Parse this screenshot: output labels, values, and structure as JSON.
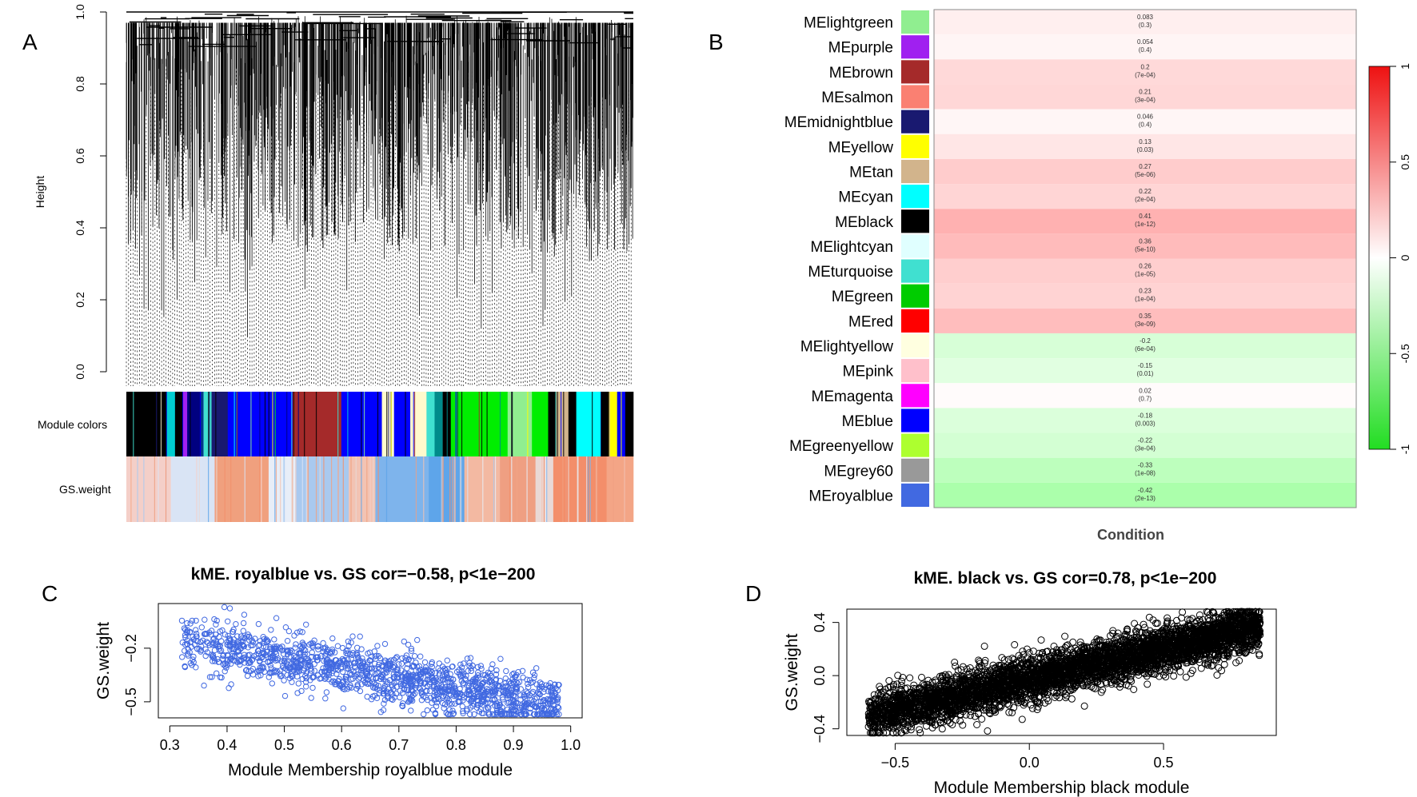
{
  "chart_data": [
    {
      "panel": "A",
      "type": "dendrogram",
      "ylabel": "Height",
      "ylim": [
        0,
        1
      ],
      "yticks": [
        "0.0",
        "0.2",
        "0.4",
        "0.6",
        "0.8",
        "1.0"
      ],
      "track_labels": [
        "Module colors",
        "GS.weight"
      ],
      "module_blocks": [
        {
          "color": "#000000",
          "width": 5
        },
        {
          "color": "#00ced1",
          "width": 1
        },
        {
          "color": "#000000",
          "width": 1
        },
        {
          "color": "#a020f0",
          "width": 0.5
        },
        {
          "color": "#000080",
          "width": 2
        },
        {
          "color": "#40e0d0",
          "width": 1
        },
        {
          "color": "#191970",
          "width": 2
        },
        {
          "color": "#0000ff",
          "width": 8
        },
        {
          "color": "#a52a2a",
          "width": 6
        },
        {
          "color": "#0000ff",
          "width": 5
        },
        {
          "color": "#fffacd",
          "width": 1.5
        },
        {
          "color": "#0000ff",
          "width": 2
        },
        {
          "color": "#fffacd",
          "width": 2
        },
        {
          "color": "#40e0d0",
          "width": 1
        },
        {
          "color": "#008b8b",
          "width": 1
        },
        {
          "color": "#000000",
          "width": 1
        },
        {
          "color": "#00ee00",
          "width": 7
        },
        {
          "color": "#90ee90",
          "width": 3
        },
        {
          "color": "#00ee00",
          "width": 2
        },
        {
          "color": "#000000",
          "width": 1
        },
        {
          "color": "#d2b48c",
          "width": 1.5
        },
        {
          "color": "#000000",
          "width": 1
        },
        {
          "color": "#00ffff",
          "width": 3
        },
        {
          "color": "#000000",
          "width": 1
        },
        {
          "color": "#ffff00",
          "width": 1
        },
        {
          "color": "#0000ff",
          "width": 1
        },
        {
          "color": "#000000",
          "width": 1
        }
      ],
      "gs_blocks": [
        {
          "color": "#f4cfc8",
          "width": 5
        },
        {
          "color": "#d9e4f5",
          "width": 5
        },
        {
          "color": "#f0a07e",
          "width": 6
        },
        {
          "color": "#e8eef8",
          "width": 3
        },
        {
          "color": "#a9c9ef",
          "width": 6
        },
        {
          "color": "#f2c3b3",
          "width": 3
        },
        {
          "color": "#7eb4ec",
          "width": 6
        },
        {
          "color": "#5ea5ea",
          "width": 4
        },
        {
          "color": "#f3b9a2",
          "width": 4
        },
        {
          "color": "#ef9f82",
          "width": 4
        },
        {
          "color": "#e9d9d6",
          "width": 2
        },
        {
          "color": "#f38e6a",
          "width": 6
        },
        {
          "color": "#f3a586",
          "width": 3
        }
      ]
    },
    {
      "panel": "B",
      "type": "heatmap",
      "xlabel": "Condition",
      "colorbar": {
        "ticks": [
          "1",
          "0.5",
          "0",
          "-0.5",
          "-1"
        ],
        "range": [
          -1,
          1
        ]
      },
      "modules": [
        {
          "name": "MElightgreen",
          "color": "#90ee90",
          "cor": 0.083,
          "cor_text": "0.083",
          "p_text": "(0.3)"
        },
        {
          "name": "MEpurple",
          "color": "#a020f0",
          "cor": 0.054,
          "cor_text": "0.054",
          "p_text": "(0.4)"
        },
        {
          "name": "MEbrown",
          "color": "#a52a2a",
          "cor": 0.2,
          "cor_text": "0.2",
          "p_text": "(7e-04)"
        },
        {
          "name": "MEsalmon",
          "color": "#fa8072",
          "cor": 0.21,
          "cor_text": "0.21",
          "p_text": "(3e-04)"
        },
        {
          "name": "MEmidnightblue",
          "color": "#191970",
          "cor": 0.046,
          "cor_text": "0.046",
          "p_text": "(0.4)"
        },
        {
          "name": "MEyellow",
          "color": "#ffff00",
          "cor": 0.13,
          "cor_text": "0.13",
          "p_text": "(0.03)"
        },
        {
          "name": "MEtan",
          "color": "#d2b48c",
          "cor": 0.27,
          "cor_text": "0.27",
          "p_text": "(5e-06)"
        },
        {
          "name": "MEcyan",
          "color": "#00ffff",
          "cor": 0.22,
          "cor_text": "0.22",
          "p_text": "(2e-04)"
        },
        {
          "name": "MEblack",
          "color": "#000000",
          "cor": 0.41,
          "cor_text": "0.41",
          "p_text": "(1e-12)"
        },
        {
          "name": "MElightcyan",
          "color": "#e0ffff",
          "cor": 0.36,
          "cor_text": "0.36",
          "p_text": "(5e-10)"
        },
        {
          "name": "MEturquoise",
          "color": "#40e0d0",
          "cor": 0.26,
          "cor_text": "0.26",
          "p_text": "(1e-05)"
        },
        {
          "name": "MEgreen",
          "color": "#00cc00",
          "cor": 0.23,
          "cor_text": "0.23",
          "p_text": "(1e-04)"
        },
        {
          "name": "MEred",
          "color": "#ff0000",
          "cor": 0.35,
          "cor_text": "0.35",
          "p_text": "(3e-09)"
        },
        {
          "name": "MElightyellow",
          "color": "#ffffe0",
          "cor": -0.2,
          "cor_text": "-0.2",
          "p_text": "(6e-04)"
        },
        {
          "name": "MEpink",
          "color": "#ffc0cb",
          "cor": -0.15,
          "cor_text": "-0.15",
          "p_text": "(0.01)"
        },
        {
          "name": "MEmagenta",
          "color": "#ff00ff",
          "cor": 0.02,
          "cor_text": "0.02",
          "p_text": "(0.7)"
        },
        {
          "name": "MEblue",
          "color": "#0000ff",
          "cor": -0.18,
          "cor_text": "-0.18",
          "p_text": "(0.003)"
        },
        {
          "name": "MEgreenyellow",
          "color": "#adff2f",
          "cor": -0.22,
          "cor_text": "-0.22",
          "p_text": "(3e-04)"
        },
        {
          "name": "MEgrey60",
          "color": "#999999",
          "cor": -0.33,
          "cor_text": "-0.33",
          "p_text": "(1e-08)"
        },
        {
          "name": "MEroyalblue",
          "color": "#4169e1",
          "cor": -0.42,
          "cor_text": "-0.42",
          "p_text": "(2e-13)"
        }
      ]
    },
    {
      "panel": "C",
      "type": "scatter",
      "title": "kME. royalblue vs. GS cor=−0.58, p<1e−200",
      "xlabel": "Module Membership  royalblue module",
      "ylabel": "GS.weight",
      "xlim": [
        0.28,
        1.02
      ],
      "ylim": [
        -0.59,
        0.05
      ],
      "xticks": [
        {
          "v": 0.3,
          "t": "0.3"
        },
        {
          "v": 0.4,
          "t": "0.4"
        },
        {
          "v": 0.5,
          "t": "0.5"
        },
        {
          "v": 0.6,
          "t": "0.6"
        },
        {
          "v": 0.7,
          "t": "0.7"
        },
        {
          "v": 0.8,
          "t": "0.8"
        },
        {
          "v": 0.9,
          "t": "0.9"
        },
        {
          "v": 1.0,
          "t": "1.0"
        }
      ],
      "yticks": [
        {
          "v": -0.2,
          "t": "−0.2"
        },
        {
          "v": -0.5,
          "t": "−0.5"
        }
      ],
      "cor": -0.58,
      "point_color": "#4169e1",
      "n_points": 1500,
      "x_range": [
        0.32,
        0.98
      ]
    },
    {
      "panel": "D",
      "type": "scatter",
      "title": "kME. black vs. GS cor=0.78, p<1e−200",
      "xlabel": "Module Membership  black module",
      "ylabel": "GS.weight",
      "xlim": [
        -0.68,
        0.92
      ],
      "ylim": [
        -0.45,
        0.5
      ],
      "xticks": [
        {
          "v": -0.5,
          "t": "−0.5"
        },
        {
          "v": 0.0,
          "t": "0.0"
        },
        {
          "v": 0.5,
          "t": "0.5"
        }
      ],
      "yticks": [
        {
          "v": 0.4,
          "t": "0.4"
        },
        {
          "v": 0.0,
          "t": "0.0"
        },
        {
          "v": -0.4,
          "t": "−0.4"
        }
      ],
      "cor": 0.78,
      "point_color": "#000000",
      "n_points": 4500,
      "x_range": [
        -0.6,
        0.86
      ]
    }
  ],
  "panel_labels": {
    "a": "A",
    "b": "B",
    "c": "C",
    "d": "D"
  }
}
